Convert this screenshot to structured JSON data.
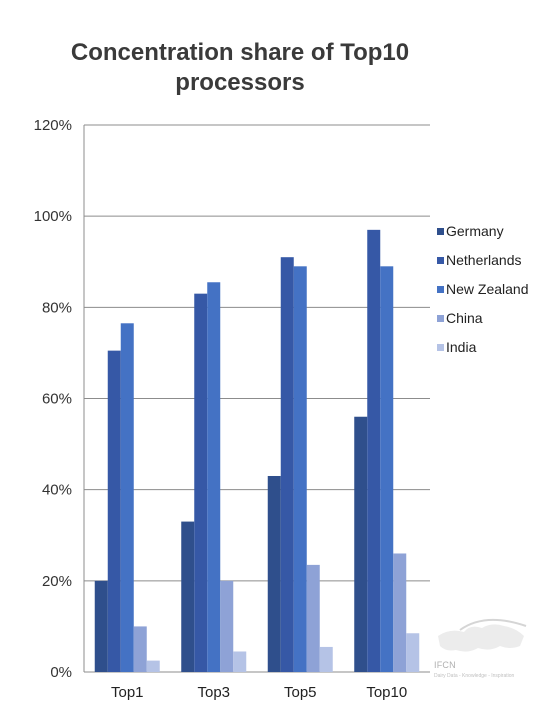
{
  "chart_data": {
    "type": "bar",
    "title": "Concentration share of Top10\nprocessors",
    "categories": [
      "Top1",
      "Top3",
      "Top5",
      "Top10"
    ],
    "series": [
      {
        "name": "Germany",
        "color": "#2f4f8c",
        "values": [
          20,
          33,
          43,
          56
        ]
      },
      {
        "name": "Netherlands",
        "color": "#3658a6",
        "values": [
          70.5,
          83,
          91,
          97
        ]
      },
      {
        "name": "New Zealand",
        "color": "#4472c4",
        "values": [
          76.5,
          85.5,
          89,
          89
        ]
      },
      {
        "name": "China",
        "color": "#8ea2d6",
        "values": [
          10,
          20,
          23.5,
          26
        ]
      },
      {
        "name": "India",
        "color": "#b5c3e6",
        "values": [
          2.5,
          4.5,
          5.5,
          8.5
        ]
      }
    ],
    "yticks": [
      "0%",
      "20%",
      "40%",
      "60%",
      "80%",
      "100%",
      "120%"
    ],
    "ylim": [
      0,
      120
    ],
    "grid": true,
    "legend_position": "right"
  },
  "watermark": {
    "logo_text": "IFCN",
    "tagline": "Dairy Data - Knowledge - Inspiration"
  }
}
